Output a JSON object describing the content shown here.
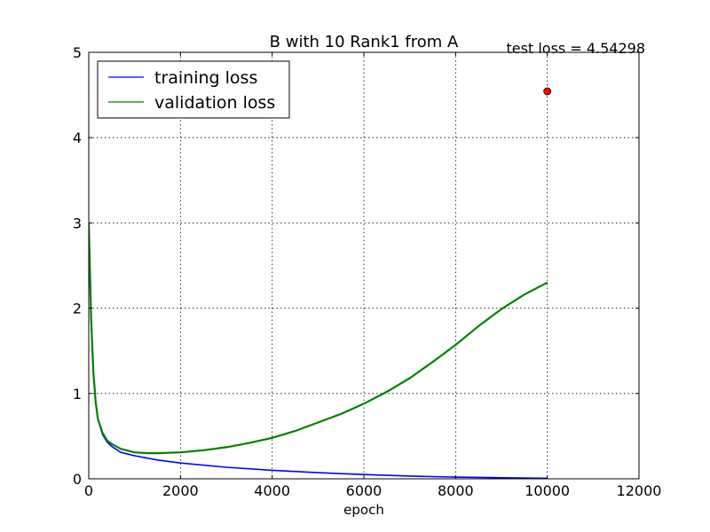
{
  "chart_data": {
    "type": "line",
    "title": "B with 10 Rank1 from A",
    "xlabel": "epoch",
    "ylabel": "",
    "xlim": [
      0,
      12000
    ],
    "ylim": [
      0,
      5
    ],
    "xticks": [
      0,
      2000,
      4000,
      6000,
      8000,
      10000,
      12000
    ],
    "yticks": [
      0,
      1,
      2,
      3,
      4,
      5
    ],
    "grid": true,
    "legend_position": "top-left",
    "series": [
      {
        "name": "training loss",
        "color": "#0000ff",
        "x": [
          0,
          50,
          100,
          150,
          200,
          300,
          400,
          500,
          700,
          1000,
          1500,
          2000,
          3000,
          4000,
          5000,
          6000,
          7000,
          8000,
          9000,
          10000
        ],
        "y": [
          3.0,
          1.9,
          1.25,
          0.9,
          0.7,
          0.52,
          0.43,
          0.38,
          0.31,
          0.27,
          0.22,
          0.185,
          0.135,
          0.1,
          0.072,
          0.05,
          0.032,
          0.02,
          0.012,
          0.006
        ]
      },
      {
        "name": "validation loss",
        "color": "#008000",
        "x": [
          0,
          50,
          100,
          150,
          200,
          300,
          400,
          500,
          700,
          1000,
          1300,
          1500,
          2000,
          2500,
          3000,
          3500,
          4000,
          4500,
          5000,
          5500,
          6000,
          6500,
          7000,
          7500,
          8000,
          8500,
          9000,
          9500,
          10000
        ],
        "y": [
          3.0,
          1.9,
          1.25,
          0.9,
          0.7,
          0.54,
          0.45,
          0.41,
          0.35,
          0.31,
          0.3,
          0.3,
          0.31,
          0.335,
          0.37,
          0.42,
          0.48,
          0.56,
          0.66,
          0.76,
          0.88,
          1.02,
          1.18,
          1.37,
          1.57,
          1.79,
          1.99,
          2.16,
          2.3
        ]
      }
    ],
    "annotations": [
      {
        "text": "test loss = 4.54298",
        "position": "top-right"
      }
    ],
    "points": [
      {
        "x": 10000,
        "y": 4.54298,
        "color": "#ff0000"
      }
    ]
  }
}
